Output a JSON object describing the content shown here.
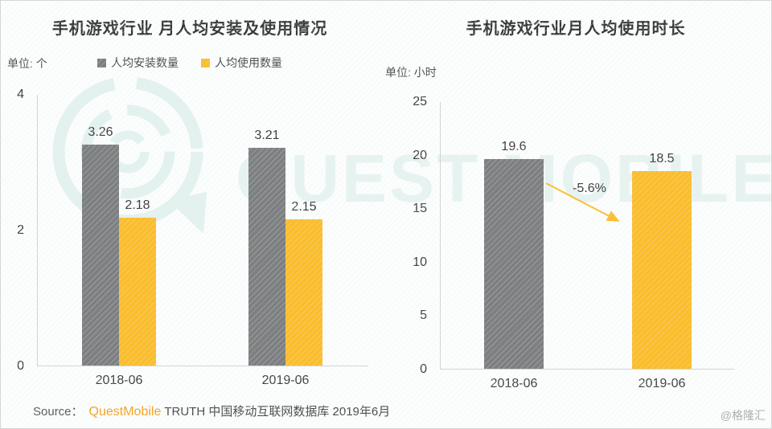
{
  "page": {
    "watermark_text": "QUEST MOBILE",
    "gelonghui": "@格隆汇"
  },
  "source": {
    "prefix": "Source：",
    "brand": "QuestMobile",
    "suffix": "TRUTH 中国移动互联网数据库 2019年6月"
  },
  "colors": {
    "install_gray": "#7d7f80",
    "usage_yellow": "#fcbd2c",
    "brand_orange": "#f6a11e",
    "watermark_teal": "#e3f1ef",
    "axis_gray": "#d2d2d2"
  },
  "chart_data": [
    {
      "type": "bar",
      "title": "手机游戏行业 月人均安装及使用情况",
      "unit_label": "单位: 个",
      "legend_position": "top",
      "grid": false,
      "categories": [
        "2018-06",
        "2019-06"
      ],
      "series": [
        {
          "name": "人均安装数量",
          "color": "#7d7f80",
          "values": [
            3.26,
            3.21
          ]
        },
        {
          "name": "人均使用数量",
          "color": "#fcbd2c",
          "values": [
            2.18,
            2.15
          ]
        }
      ],
      "ylim": [
        0,
        4
      ],
      "yticks": [
        0,
        2,
        4
      ]
    },
    {
      "type": "bar",
      "title": "手机游戏行业月人均使用时长",
      "unit_label": "单位: 小时",
      "legend_position": "none",
      "grid": false,
      "categories": [
        "2018-06",
        "2019-06"
      ],
      "series": [
        {
          "name": "月人均使用时长",
          "colors": [
            "#7d7f80",
            "#fcbd2c"
          ],
          "values": [
            19.6,
            18.5
          ]
        }
      ],
      "ylim": [
        0,
        25
      ],
      "yticks": [
        0,
        5,
        10,
        15,
        20,
        25
      ],
      "annotation": {
        "text": "-5.6%"
      }
    }
  ]
}
